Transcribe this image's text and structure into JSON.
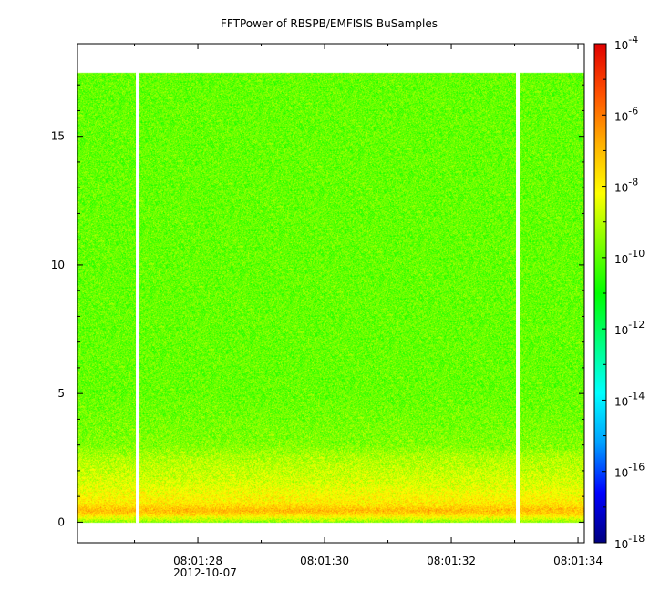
{
  "chart_data": {
    "type": "heatmap",
    "title": "FFTPower of RBSPB/EMFISIS  BuSamples",
    "xlabel": "",
    "ylabel": "",
    "x_ticks": [
      {
        "label": "08:01:28",
        "value": 28
      },
      {
        "label": "08:01:30",
        "value": 30
      },
      {
        "label": "08:01:32",
        "value": 32
      },
      {
        "label": "08:01:34",
        "value": 34
      }
    ],
    "x_minor_ticks": [
      27,
      29,
      31,
      33
    ],
    "x_date_label": "2012-10-07",
    "xlim_seconds_past_08_01": [
      26.1,
      34.1
    ],
    "y_ticks": [
      0,
      5,
      10,
      15
    ],
    "ylim": [
      -0.8,
      18.6
    ],
    "data_extent": {
      "x_seconds": [
        26.1,
        34.1
      ],
      "y": [
        0,
        17.5
      ]
    },
    "gaps_seconds": [
      27.05,
      33.05
    ],
    "colorbar": {
      "scale": "log",
      "range": [
        1e-18,
        0.0001
      ],
      "ticks": [
        {
          "base": "10",
          "exp": "-4",
          "value": 0.0001
        },
        {
          "base": "10",
          "exp": "-6",
          "value": 1e-06
        },
        {
          "base": "10",
          "exp": "-8",
          "value": 1e-08
        },
        {
          "base": "10",
          "exp": "-10",
          "value": 1e-10
        },
        {
          "base": "10",
          "exp": "-12",
          "value": 1e-12
        },
        {
          "base": "10",
          "exp": "-14",
          "value": 1e-14
        },
        {
          "base": "10",
          "exp": "-16",
          "value": 1e-16
        },
        {
          "base": "10",
          "exp": "-18",
          "value": 1e-18
        }
      ],
      "colors": [
        "#00007f",
        "#0000ff",
        "#00a0ff",
        "#00ffff",
        "#00ff80",
        "#00ff00",
        "#80ff00",
        "#ffff00",
        "#ffb000",
        "#ff5000",
        "#e00000"
      ]
    },
    "power_profile_log10": [
      {
        "y": 0.0,
        "value": -9.5
      },
      {
        "y": 0.3,
        "value": -7.5
      },
      {
        "y": 0.45,
        "value": -7.0
      },
      {
        "y": 0.7,
        "value": -7.8
      },
      {
        "y": 1.5,
        "value": -8.6
      },
      {
        "y": 2.5,
        "value": -9.1
      },
      {
        "y": 3.0,
        "value": -9.6
      },
      {
        "y": 5.0,
        "value": -9.9
      },
      {
        "y": 10.0,
        "value": -9.9
      },
      {
        "y": 17.5,
        "value": -9.9
      }
    ],
    "grid": false
  }
}
